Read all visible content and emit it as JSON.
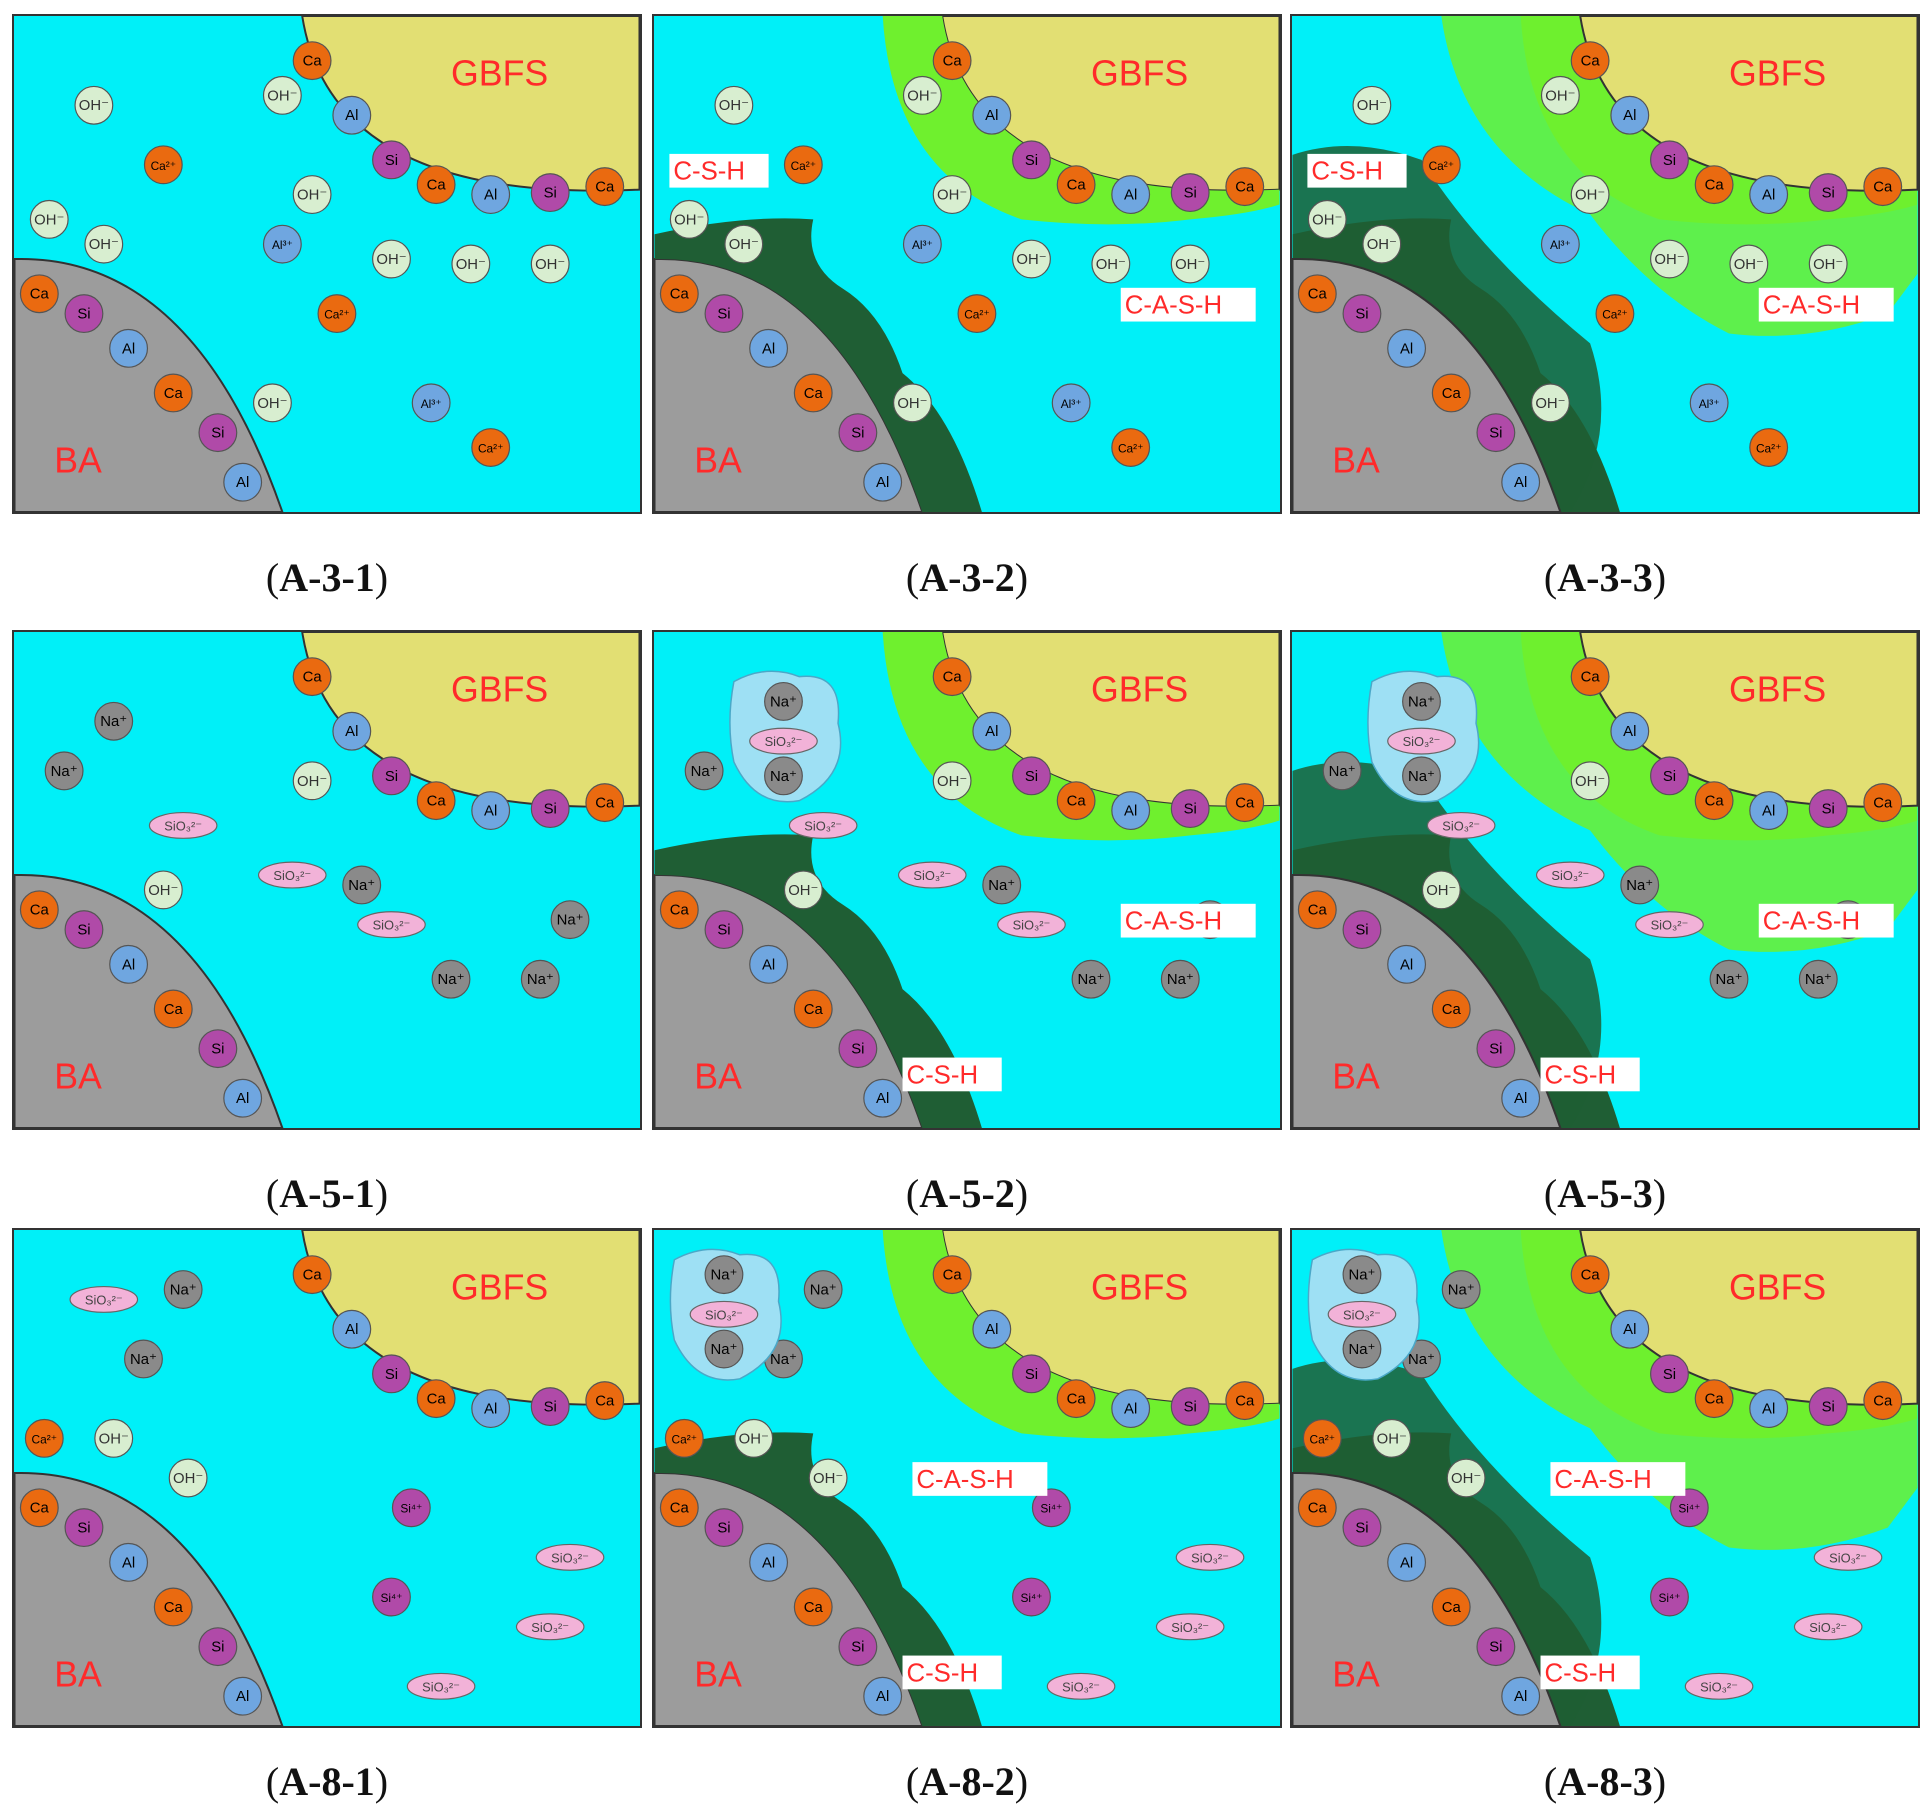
{
  "labels": {
    "gbfs": "GBFS",
    "ba": "BA",
    "csh": "C-S-H",
    "cash": "C-A-S-H"
  },
  "ions": {
    "oh": "OH⁻",
    "ca": "Ca",
    "ca2": "Ca²⁺",
    "al": "Al",
    "al3": "Al³⁺",
    "si": "Si",
    "si4": "Si⁴⁺",
    "na": "Na⁺",
    "sio": "SiO₃²⁻"
  },
  "colors": {
    "solution": "#00f0f8",
    "gbfs": "#e2df73",
    "ba": "#9c9c9c",
    "csh_gel": "#1f5e34",
    "cash_gel": "#6ff02e",
    "label_text": "#ff2a2a",
    "ca": "#ea6a10",
    "al": "#6fa6e0",
    "si": "#b04aa8",
    "oh": "#d8eed0",
    "na": "#8a8a8a",
    "sio": "#f2b2d8",
    "ion_cluster": "#9ee0f4"
  },
  "panels": [
    {
      "id": "A-3-1",
      "caption": "A-3-1"
    },
    {
      "id": "A-3-2",
      "caption": "A-3-2"
    },
    {
      "id": "A-3-3",
      "caption": "A-3-3"
    },
    {
      "id": "A-5-1",
      "caption": "A-5-1"
    },
    {
      "id": "A-5-2",
      "caption": "A-5-2"
    },
    {
      "id": "A-5-3",
      "caption": "A-5-3"
    },
    {
      "id": "A-8-1",
      "caption": "A-8-1"
    },
    {
      "id": "A-8-2",
      "caption": "A-8-2"
    },
    {
      "id": "A-8-3",
      "caption": "A-8-3"
    }
  ]
}
